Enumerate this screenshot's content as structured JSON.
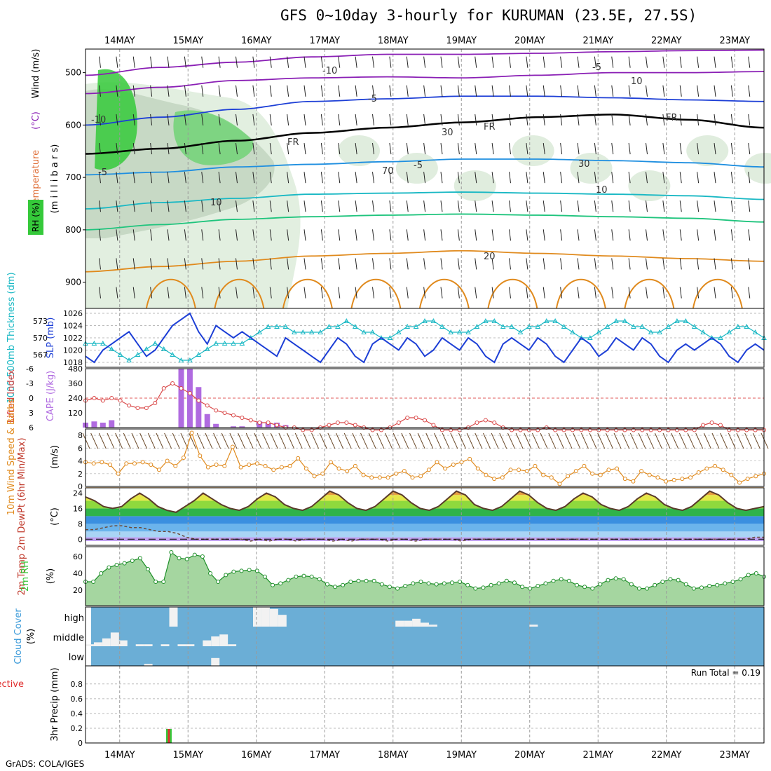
{
  "header": {
    "title": "GFS 0~10day 3-hourly for KURUMAN (23.5E, 27.5S)",
    "credit": "GrADS: COLA/IGES"
  },
  "colors": {
    "grid": "#9a9a9a",
    "purple": "#8a1fb5",
    "blue": "#1d3fd6",
    "lightblue": "#1f8fe0",
    "cyan": "#19b8c4",
    "green": "#1fc47d",
    "orange": "#e08a1d",
    "rh_green": "#35c93a",
    "cloud": "#6baed6"
  },
  "chart_data": [
    {
      "type": "line",
      "name": "upper-air-cross-section",
      "x_ticks": [
        "14MAY",
        "15MAY",
        "16MAY",
        "17MAY",
        "18MAY",
        "19MAY",
        "20MAY",
        "21MAY",
        "22MAY",
        "23MAY"
      ],
      "ylabel_parts": [
        "Temperature",
        "(°C)",
        "Wind (m/s)"
      ],
      "ylabel_units": "(m i l l i b a r s)",
      "rh_legend": "RH (%)",
      "y_ticks": [
        "500",
        "600",
        "700",
        "800",
        "900"
      ],
      "ylim": [
        950,
        455
      ],
      "contour_labels": [
        "-10",
        "-10",
        "-5",
        "-5",
        "-5",
        "-5",
        "10",
        "10",
        "FR",
        "FR",
        "FR",
        "20",
        "10",
        "30",
        "30",
        "70"
      ],
      "isotherms": [
        {
          "label": "-10",
          "color": "purple",
          "p": [
            505,
            490,
            480,
            470,
            465,
            465,
            463,
            460,
            458,
            457
          ]
        },
        {
          "label": "-10",
          "color": "purple",
          "p": [
            540,
            528,
            515,
            510,
            508,
            510,
            505,
            500,
            500,
            498
          ]
        },
        {
          "label": "-5",
          "color": "blue",
          "p": [
            600,
            585,
            570,
            555,
            550,
            545,
            545,
            548,
            552,
            555
          ]
        },
        {
          "label": "FR",
          "color": "black",
          "p": [
            655,
            645,
            630,
            615,
            605,
            595,
            585,
            580,
            590,
            605
          ]
        },
        {
          "label": "-5",
          "color": "lightblue",
          "p": [
            695,
            690,
            680,
            675,
            670,
            665,
            665,
            668,
            672,
            680
          ]
        },
        {
          "label": "10",
          "color": "cyan",
          "p": [
            760,
            748,
            740,
            732,
            730,
            728,
            730,
            732,
            735,
            742
          ]
        },
        {
          "label": "10",
          "color": "green",
          "p": [
            800,
            790,
            780,
            775,
            772,
            770,
            772,
            775,
            778,
            785
          ]
        },
        {
          "label": "20",
          "color": "orange",
          "p": [
            880,
            870,
            860,
            850,
            845,
            840,
            845,
            850,
            855,
            860
          ]
        }
      ]
    },
    {
      "type": "line",
      "name": "thickness-slp",
      "ylabel_left": "1000-500mb Thickness (dm)",
      "ylabel_right": "SLP (mb)",
      "thick_ticks": [
        "573",
        "570",
        "567"
      ],
      "slp_ticks": [
        "1026",
        "1024",
        "1022",
        "1020",
        "1018"
      ],
      "series": [
        {
          "name": "SLP",
          "values": [
            1019,
            1018,
            1020,
            1021,
            1022,
            1023,
            1021,
            1019,
            1020,
            1022,
            1024,
            1025,
            1026,
            1023,
            1021,
            1024,
            1023,
            1022,
            1023,
            1022,
            1021,
            1020,
            1019,
            1022,
            1021,
            1020,
            1019,
            1018,
            1020,
            1022,
            1021,
            1019,
            1018,
            1021,
            1022,
            1021,
            1020,
            1022,
            1021,
            1019,
            1020,
            1022,
            1021,
            1020,
            1022,
            1021,
            1019,
            1018,
            1021,
            1022,
            1021,
            1020,
            1022,
            1021,
            1019,
            1018,
            1020,
            1022,
            1021,
            1019,
            1020,
            1022,
            1021,
            1020,
            1022,
            1021,
            1019,
            1018,
            1020,
            1021,
            1020,
            1021,
            1022,
            1021,
            1019,
            1018,
            1020,
            1021,
            1020
          ]
        },
        {
          "name": "Thickness",
          "values": [
            569,
            569,
            569,
            568,
            567,
            566,
            567,
            568,
            569,
            568,
            567,
            566,
            566,
            567,
            568,
            569,
            569,
            569,
            569,
            570,
            571,
            572,
            572,
            572,
            571,
            571,
            571,
            571,
            572,
            572,
            573,
            572,
            571,
            571,
            570,
            570,
            571,
            572,
            572,
            573,
            573,
            572,
            571,
            571,
            571,
            572,
            573,
            573,
            572,
            572,
            571,
            572,
            572,
            573,
            573,
            572,
            571,
            570,
            570,
            571,
            572,
            573,
            573,
            572,
            572,
            571,
            571,
            572,
            573,
            573,
            572,
            571,
            570,
            570,
            571,
            572,
            572,
            571,
            570
          ]
        }
      ]
    },
    {
      "type": "bar",
      "name": "lifted-index-cape",
      "ylabel_left": "Lifted Index",
      "ylabel_right": "CAPE (J/kg)",
      "li_ticks": [
        "-6",
        "-3",
        "0",
        "3",
        "6"
      ],
      "cape_ticks": [
        "480",
        "360",
        "240",
        "120"
      ],
      "cape_values": [
        40,
        50,
        40,
        60,
        0,
        0,
        0,
        0,
        0,
        0,
        0,
        480,
        480,
        330,
        110,
        30,
        0,
        10,
        10,
        0,
        50,
        40,
        40,
        20,
        0,
        0,
        0,
        0,
        0,
        0,
        0,
        0,
        0,
        0,
        0,
        0,
        0,
        0,
        0,
        0,
        0,
        0,
        0,
        0,
        0,
        0,
        0,
        0,
        0,
        0,
        0,
        0,
        0,
        0,
        0,
        0,
        0,
        0,
        0,
        0,
        0,
        0,
        0,
        0,
        0,
        0,
        0,
        0,
        0,
        0,
        0,
        0,
        0,
        0,
        0,
        0,
        0,
        0,
        0
      ],
      "li_values": [
        0.5,
        0,
        0.5,
        0,
        0.5,
        1.5,
        2,
        2,
        1,
        -2,
        -3,
        -2,
        -1,
        0.5,
        1.5,
        2.5,
        3,
        3.5,
        4,
        4.5,
        5,
        5,
        5.5,
        6,
        6,
        6.5,
        6.5,
        6,
        5.5,
        5,
        5,
        5.5,
        6,
        6.5,
        6.5,
        6,
        5,
        4,
        4,
        4.5,
        5.5,
        6.5,
        6.5,
        6.5,
        6,
        5,
        4.5,
        5,
        6,
        6.5,
        6.5,
        6.5,
        6.5,
        6,
        6.5,
        6.5,
        6.5,
        6.5,
        6.5,
        6.5,
        6.5,
        6.5,
        6.5,
        6.5,
        6.5,
        6.5,
        6.5,
        6.5,
        6.5,
        6.5,
        6.5,
        5.5,
        5,
        5.5,
        6.5,
        6.5,
        6.5,
        6.5,
        6.5
      ]
    },
    {
      "type": "line",
      "name": "wind-10m",
      "ylabel": "10m Wind Speed & Barbs",
      "yunits": "(m/s)",
      "y_ticks": [
        "8",
        "6",
        "4",
        "2",
        "0"
      ],
      "values": [
        3.8,
        3.6,
        3.8,
        3.4,
        2,
        3.6,
        3.6,
        3.8,
        3.4,
        2.6,
        4,
        3.2,
        4.5,
        8.4,
        4.8,
        3,
        3.4,
        3.2,
        6.2,
        3,
        3.4,
        3.6,
        3.2,
        2.6,
        3,
        3.2,
        4.4,
        2.8,
        1.6,
        2,
        3.8,
        2.8,
        2.4,
        3.2,
        1.8,
        1.4,
        1.4,
        1.4,
        2,
        2.4,
        1.4,
        1.6,
        2.6,
        3.8,
        2.8,
        3.4,
        3.8,
        4.3,
        2.8,
        1.8,
        1.2,
        1.4,
        2.6,
        2.6,
        2.4,
        3.2,
        1.8,
        1.4,
        0.4,
        1.6,
        2.4,
        3.2,
        2,
        1.8,
        2.6,
        2.8,
        1.2,
        0.8,
        2.4,
        1.8,
        1.4,
        0.8,
        1,
        1.2,
        1.4,
        2.2,
        2.8,
        3.2,
        2.6,
        1.8,
        0.6,
        1.2,
        1.6,
        2
      ]
    },
    {
      "type": "area",
      "name": "temperature-dewpoint",
      "ylabel": "2m Temp 2m DewPt (6hr Min/Max)",
      "yunits": "(°C)",
      "y_ticks": [
        "24",
        "16",
        "8",
        "0"
      ],
      "temp": [
        22,
        20,
        17,
        16,
        17,
        21,
        24,
        21,
        17,
        15,
        14,
        17,
        20,
        24,
        21,
        18,
        16,
        15,
        17,
        21,
        24,
        22,
        18,
        16,
        15,
        17,
        21,
        25,
        23,
        19,
        16,
        15,
        17,
        21,
        25,
        23,
        19,
        16,
        15,
        17,
        21,
        25,
        23,
        18,
        16,
        15,
        17,
        21,
        25,
        23,
        19,
        16,
        15,
        17,
        21,
        24,
        22,
        18,
        16,
        15,
        17,
        21,
        24,
        22,
        18,
        16,
        15,
        17,
        21,
        25,
        23,
        19,
        16,
        15,
        16,
        17
      ],
      "dewpt": [
        5,
        5,
        6,
        7,
        7,
        6,
        6,
        5,
        4,
        4,
        3,
        1,
        0,
        0,
        0,
        0,
        0,
        0,
        -1,
        0,
        -1,
        0,
        0,
        -1,
        0,
        0,
        0,
        -1,
        0,
        -1,
        0,
        0,
        0,
        -1,
        0,
        0,
        -1,
        0,
        0,
        0,
        0,
        -1,
        0,
        0,
        0,
        0,
        0,
        0,
        0,
        0,
        0,
        0,
        0,
        0,
        0,
        0,
        0,
        0,
        0,
        0,
        0,
        0,
        0,
        0,
        0,
        0,
        0,
        0,
        0,
        0,
        0,
        0,
        0,
        1,
        1
      ]
    },
    {
      "type": "area",
      "name": "relative-humidity",
      "ylabel": "2m RH",
      "yunits": "(%)",
      "y_ticks": [
        "60",
        "40",
        "20"
      ],
      "values": [
        30,
        30,
        40,
        47,
        50,
        52,
        55,
        58,
        45,
        30,
        30,
        65,
        58,
        57,
        62,
        60,
        40,
        30,
        38,
        42,
        43,
        44,
        43,
        36,
        26,
        28,
        32,
        36,
        37,
        36,
        33,
        27,
        24,
        26,
        30,
        31,
        31,
        31,
        27,
        24,
        22,
        25,
        28,
        30,
        28,
        27,
        28,
        29,
        30,
        26,
        22,
        23,
        26,
        28,
        31,
        29,
        24,
        22,
        25,
        28,
        31,
        33,
        31,
        26,
        24,
        22,
        27,
        32,
        34,
        33,
        27,
        22,
        22,
        26,
        30,
        33,
        32,
        27,
        22,
        23,
        25,
        26,
        28,
        30,
        33,
        38,
        40,
        36
      ]
    },
    {
      "type": "area",
      "name": "cloud-cover",
      "ylabel": "Cloud Cover",
      "yunits": "(%)",
      "levels": [
        "high",
        "middle",
        "low"
      ],
      "high_values": [
        0,
        0,
        0,
        0,
        0,
        0,
        0,
        0,
        0,
        0,
        100,
        0,
        0,
        0,
        0,
        0,
        0,
        0,
        0,
        0,
        100,
        100,
        90,
        60,
        0,
        0,
        0,
        0,
        0,
        0,
        0,
        0,
        0,
        0,
        0,
        0,
        0,
        30,
        30,
        40,
        20,
        10,
        0,
        0,
        0,
        0,
        0,
        0,
        0,
        0,
        0,
        0,
        0,
        10,
        0,
        0,
        0,
        0,
        0,
        0,
        0,
        0,
        0,
        0,
        0,
        0,
        0,
        0,
        0,
        0,
        0,
        0,
        0,
        0,
        0,
        0,
        0,
        0,
        0,
        0,
        0,
        0
      ],
      "middle_values": [
        10,
        20,
        40,
        70,
        30,
        0,
        10,
        10,
        0,
        10,
        0,
        10,
        10,
        0,
        30,
        50,
        60,
        10,
        0,
        0,
        0,
        0,
        0,
        0,
        0,
        0,
        0,
        0,
        0,
        0,
        0,
        0,
        0,
        0,
        0,
        0,
        0,
        0,
        0,
        0,
        0,
        0,
        0,
        0,
        0,
        0,
        0,
        0,
        0,
        0,
        0,
        0,
        0,
        0,
        0,
        0,
        0,
        0,
        0,
        0,
        0,
        0,
        0,
        0,
        0,
        0,
        0,
        0,
        0,
        0,
        0,
        0,
        0,
        0,
        0,
        0,
        0,
        0,
        0,
        0,
        0,
        0
      ],
      "low_values": [
        0,
        0,
        0,
        0,
        0,
        0,
        0,
        10,
        0,
        0,
        0,
        0,
        0,
        0,
        0,
        40,
        0,
        0,
        0,
        0,
        0,
        0,
        0,
        0,
        0,
        0,
        0,
        0,
        0,
        0,
        0,
        0,
        0,
        0,
        0,
        0,
        0,
        0,
        0,
        0,
        0,
        0,
        0,
        0,
        0,
        0,
        0,
        0,
        0,
        0,
        0,
        0,
        0,
        0,
        0,
        0,
        0,
        0,
        0,
        0,
        0,
        0,
        0,
        0,
        0,
        0,
        0,
        0,
        0,
        0,
        0,
        0,
        0,
        0,
        0,
        0,
        0,
        0,
        0,
        0,
        0,
        0
      ]
    },
    {
      "type": "bar",
      "name": "precipitation",
      "ylabel": "Total / Rain Convective",
      "yunits": "3hr Precip (mm)",
      "y_ticks": [
        "0.8",
        "0.6",
        "0.4",
        "0.2",
        "0"
      ],
      "ylim": [
        0,
        0.95
      ],
      "run_total": "Run Total = 0.19",
      "precip_day": 14.72,
      "total": 0.19,
      "convective": 0.19
    }
  ]
}
